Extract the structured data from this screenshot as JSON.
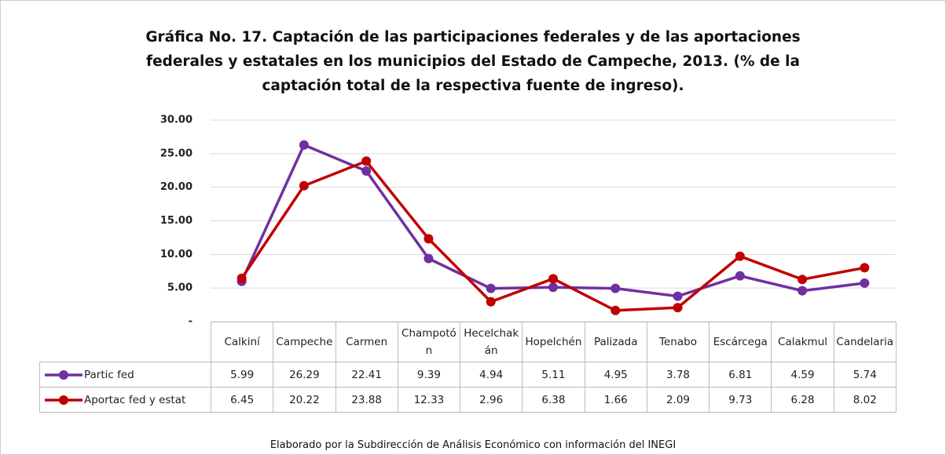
{
  "chart_data": {
    "type": "line",
    "title": "Gráfica No. 17. Captación de las participaciones federales y de las aportaciones federales y estatales en los municipios del Estado de Campeche, 2013. (% de la captación total de la respectiva fuente de ingreso).",
    "categories": [
      "Calkiní",
      "Campeche",
      "Carmen",
      "Champotón",
      "Hecelchakán",
      "Hopelchén",
      "Palizada",
      "Tenabo",
      "Escárcega",
      "Calakmul",
      "Candelaria"
    ],
    "series": [
      {
        "name": "Partic fed",
        "color": "#7030a0",
        "values": [
          5.99,
          26.29,
          22.41,
          9.39,
          4.94,
          5.11,
          4.95,
          3.78,
          6.81,
          4.59,
          5.74
        ]
      },
      {
        "name": "Aportac fed y estat",
        "color": "#c00000",
        "values": [
          6.45,
          20.22,
          23.88,
          12.33,
          2.96,
          6.38,
          1.66,
          2.09,
          9.73,
          6.28,
          8.02
        ]
      }
    ],
    "ylim": [
      0,
      30
    ],
    "yticks": [
      {
        "value": 0,
        "label": "-"
      },
      {
        "value": 5,
        "label": "5.00"
      },
      {
        "value": 10,
        "label": "10.00"
      },
      {
        "value": 15,
        "label": "15.00"
      },
      {
        "value": 20,
        "label": "20.00"
      },
      {
        "value": 25,
        "label": "25.00"
      },
      {
        "value": 30,
        "label": "30.00"
      }
    ],
    "grid": true,
    "note": "Elaborado por la Subdirección de Análisis Económico con información del INEGI"
  }
}
